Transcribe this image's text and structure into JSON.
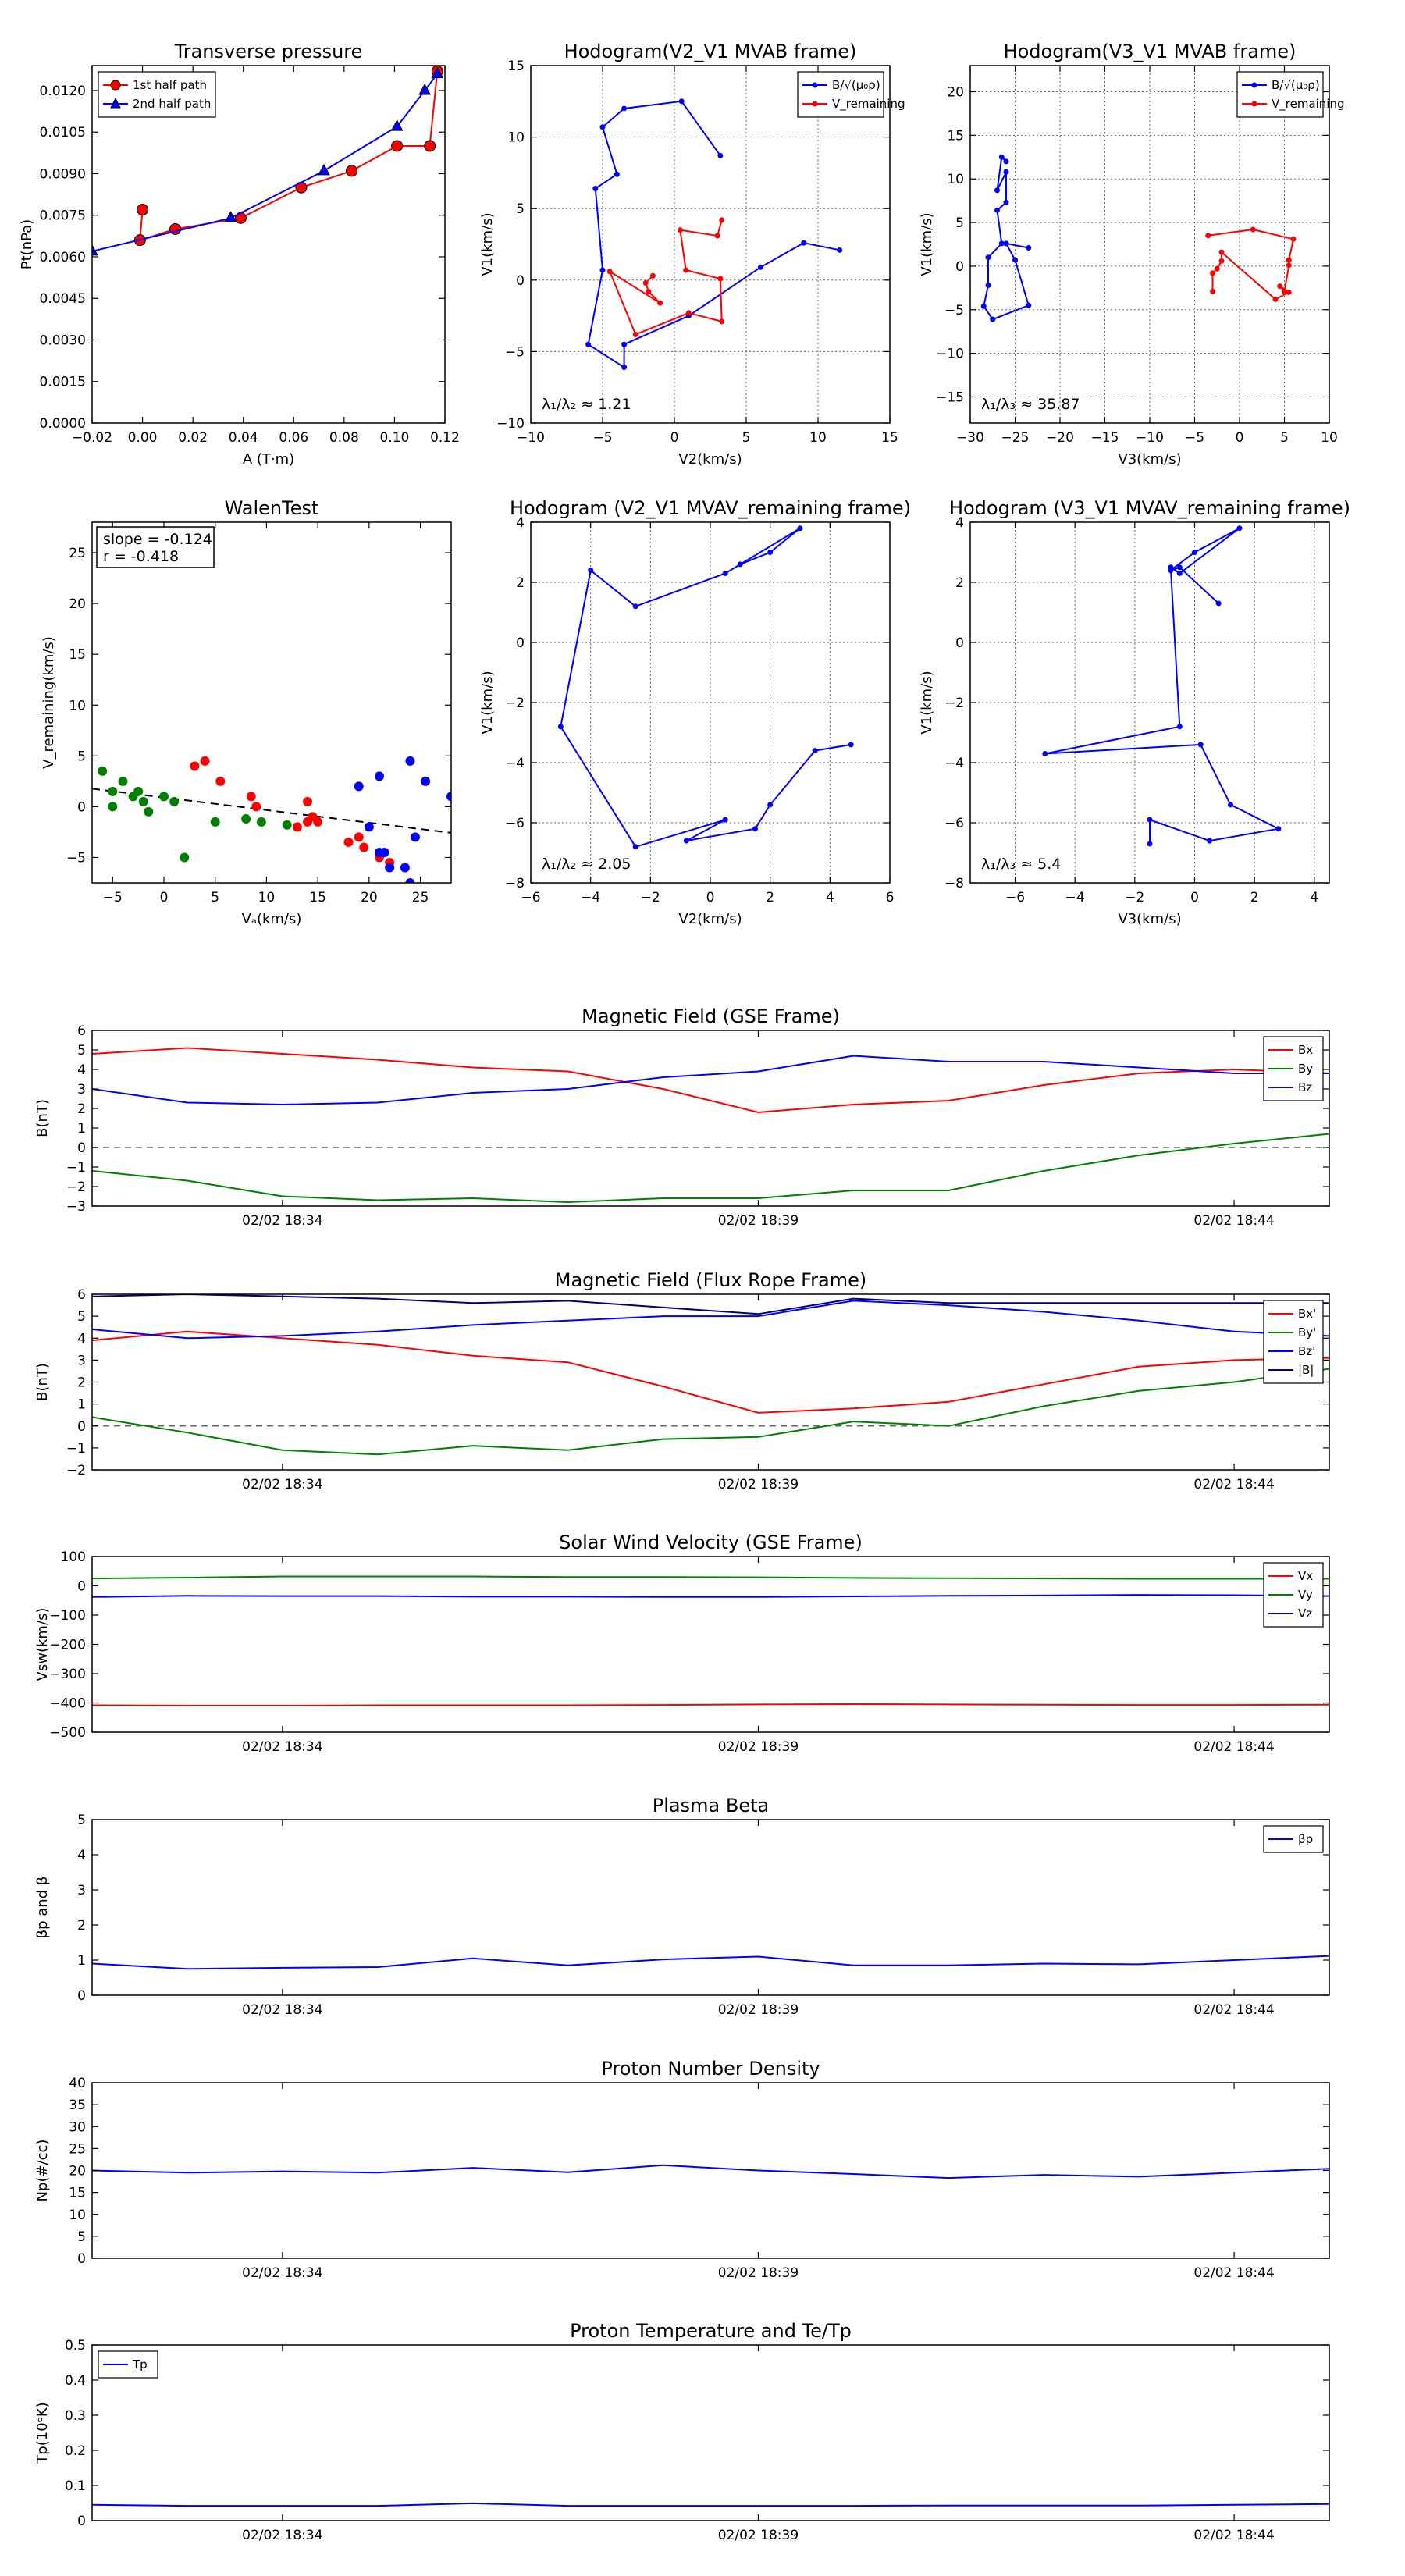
{
  "chart_data": [
    {
      "id": "pt",
      "type": "line",
      "title": "Transverse pressure",
      "xlabel": "A (T·m)",
      "ylabel": "Pt(nPa)",
      "xlim": [
        -0.02,
        0.12
      ],
      "ylim": [
        0,
        0.0129
      ],
      "xticks": [
        -0.02,
        0,
        0.02,
        0.04,
        0.06,
        0.08,
        0.1,
        0.12
      ],
      "xtick_labels": [
        "−0.02",
        "0.00",
        "0.02",
        "0.04",
        "0.06",
        "0.08",
        "0.10",
        "0.12"
      ],
      "yticks": [
        0,
        0.0015,
        0.003,
        0.0045,
        0.006,
        0.0075,
        0.009,
        0.0105,
        0.012
      ],
      "ytick_labels": [
        "0.0000",
        "0.0015",
        "0.0030",
        "0.0045",
        "0.0060",
        "0.0075",
        "0.0090",
        "0.0105",
        "0.0120"
      ],
      "legend": "top-left",
      "series": [
        {
          "name": "1st half path",
          "color": "#ff0000",
          "marker": "circle",
          "x": [
            0.0,
            -0.001,
            0.013,
            0.039,
            0.063,
            0.083,
            0.101,
            0.114,
            0.117
          ],
          "y": [
            0.0077,
            0.0066,
            0.007,
            0.0074,
            0.0085,
            0.0091,
            0.01,
            0.01,
            0.0127
          ]
        },
        {
          "name": "2nd half path",
          "color": "#0000ff",
          "marker": "triangle",
          "x": [
            -0.02,
            0.035,
            0.072,
            0.101,
            0.112,
            0.117
          ],
          "y": [
            0.0062,
            0.0074,
            0.0091,
            0.0107,
            0.012,
            0.0126
          ]
        }
      ]
    },
    {
      "id": "hodo1",
      "type": "line",
      "title": "Hodogram(V2_V1 MVAB frame)",
      "xlabel": "V2(km/s)",
      "ylabel": "V1(km/s)",
      "xlim": [
        -10,
        15
      ],
      "ylim": [
        -10,
        15
      ],
      "xticks": [
        -10,
        -5,
        0,
        5,
        10,
        15
      ],
      "yticks": [
        -10,
        -5,
        0,
        5,
        10,
        15
      ],
      "legend": "top-right",
      "annotation": "λ₁/λ₂ ≈ 1.21",
      "series": [
        {
          "name": "B/√(μ₀ρ)",
          "color": "#0000ff",
          "marker": "dot",
          "x": [
            3.2,
            0.5,
            -3.5,
            -5.0,
            -4.0,
            -5.5,
            -5.0,
            -6.0,
            -3.5,
            -3.5,
            1.0,
            6.0,
            9.0,
            11.5
          ],
          "y": [
            8.7,
            12.5,
            12.0,
            10.7,
            7.4,
            6.4,
            0.7,
            -4.5,
            -6.1,
            -4.5,
            -2.5,
            0.9,
            2.6,
            2.1
          ]
        },
        {
          "name": "V_remaining",
          "color": "#ff0000",
          "marker": "dot",
          "x": [
            3.3,
            3.0,
            0.4,
            0.8,
            3.2,
            3.3,
            1.0,
            -2.7,
            -4.5,
            -1.0,
            -1.8,
            -2.0,
            -1.5
          ],
          "y": [
            4.2,
            3.1,
            3.5,
            0.7,
            0.1,
            -2.9,
            -2.3,
            -3.8,
            0.6,
            -1.6,
            -0.8,
            -0.2,
            0.3
          ]
        }
      ]
    },
    {
      "id": "hodo2",
      "type": "line",
      "title": "Hodogram(V3_V1 MVAB frame)",
      "xlabel": "V3(km/s)",
      "ylabel": "V1(km/s)",
      "xlim": [
        -30,
        10
      ],
      "ylim": [
        -18,
        23
      ],
      "xticks": [
        -30,
        -25,
        -20,
        -15,
        -10,
        -5,
        0,
        5,
        10
      ],
      "yticks": [
        -15,
        -10,
        -5,
        0,
        5,
        10,
        15,
        20
      ],
      "legend": "top-right",
      "annotation": "λ₁/λ₃ ≈ 35.87",
      "series": [
        {
          "name": "B/√(μ₀ρ)",
          "color": "#0000ff",
          "marker": "dot",
          "x": [
            -26.0,
            -26.5,
            -27.0,
            -26.0,
            -26.0,
            -27.0,
            -26.5,
            -28.0,
            -28.0,
            -28.5,
            -27.5,
            -23.5,
            -25.0,
            -26.0,
            -23.5
          ],
          "y": [
            12.0,
            12.5,
            8.7,
            10.8,
            7.3,
            6.4,
            2.6,
            1.0,
            -2.2,
            -4.6,
            -6.1,
            -4.5,
            0.7,
            2.6,
            2.1
          ]
        },
        {
          "name": "V_remaining",
          "color": "#ff0000",
          "marker": "dot",
          "x": [
            -3.5,
            1.5,
            6.0,
            5.5,
            5.5,
            5.0,
            4.5,
            5.5,
            4.0,
            -2.0,
            -2.0,
            -2.5,
            -3.0,
            -3.0
          ],
          "y": [
            3.5,
            4.2,
            3.1,
            0.7,
            0.1,
            -2.9,
            -2.3,
            -3.0,
            -3.8,
            1.6,
            0.6,
            -0.3,
            -0.8,
            -2.9
          ]
        }
      ]
    },
    {
      "id": "walen",
      "type": "scatter",
      "title": "WalenTest",
      "xlabel": "Vₐ(km/s)",
      "ylabel": "V_remaining(km/s)",
      "xlim": [
        -7,
        28
      ],
      "ylim": [
        -7.5,
        28
      ],
      "xticks": [
        -5,
        0,
        5,
        10,
        15,
        20,
        25
      ],
      "yticks": [
        -5,
        0,
        5,
        10,
        15,
        20,
        25
      ],
      "annotation": [
        "slope = -0.124",
        "r = -0.418"
      ],
      "fit_line": {
        "slope": -0.124,
        "intercept": 0.9,
        "color": "#000000",
        "style": "dashed"
      },
      "series": [
        {
          "name": "",
          "color": "#008000",
          "x": [
            -6.0,
            -5.0,
            -5.0,
            -4.0,
            -3.0,
            -2.5,
            -2.0,
            -1.5,
            0.0,
            1.0,
            2.0,
            5.0,
            8.0,
            9.5,
            12.0
          ],
          "y": [
            3.5,
            1.5,
            0.0,
            2.5,
            1.0,
            1.5,
            0.5,
            -0.5,
            1.0,
            0.5,
            -5.0,
            -1.5,
            -1.2,
            -1.5,
            -1.8
          ]
        },
        {
          "name": "",
          "color": "#ff0000",
          "x": [
            3.0,
            4.0,
            5.5,
            8.5,
            9.0,
            13.0,
            14.0,
            14.5,
            15.0,
            14.0,
            18.0,
            19.0,
            19.5,
            21.0,
            22.0
          ],
          "y": [
            4.0,
            4.5,
            2.5,
            1.0,
            0.0,
            -2.0,
            0.5,
            -1.0,
            -1.5,
            -1.5,
            -3.5,
            -3.0,
            -4.0,
            -5.0,
            -5.5
          ]
        },
        {
          "name": "",
          "color": "#0000ff",
          "x": [
            19.0,
            20.0,
            21.0,
            21.0,
            21.5,
            22.0,
            23.5,
            24.0,
            24.5,
            25.5,
            28.0,
            24.0
          ],
          "y": [
            2.0,
            -2.0,
            3.0,
            -4.5,
            -4.5,
            -6.0,
            -6.0,
            4.5,
            -3.0,
            2.5,
            1.0,
            -7.5
          ]
        }
      ]
    },
    {
      "id": "hodo3",
      "type": "line",
      "title": "Hodogram (V2_V1 MVAV_remaining frame)",
      "xlabel": "V2(km/s)",
      "ylabel": "V1(km/s)",
      "xlim": [
        -6,
        6
      ],
      "ylim": [
        -8,
        4
      ],
      "xticks": [
        -6,
        -4,
        -2,
        0,
        2,
        4,
        6
      ],
      "yticks": [
        -8,
        -6,
        -4,
        -2,
        0,
        2,
        4
      ],
      "annotation": "λ₁/λ₂ ≈ 2.05",
      "series": [
        {
          "name": "",
          "color": "#0000ff",
          "marker": "dot",
          "x": [
            1.0,
            2.0,
            3.0,
            0.5,
            -2.5,
            -4.0,
            -5.0,
            -2.5,
            0.5,
            -0.8,
            1.5,
            2.0,
            3.5,
            4.7
          ],
          "y": [
            2.6,
            3.0,
            3.8,
            2.3,
            1.2,
            2.4,
            -2.8,
            -6.8,
            -5.9,
            -6.6,
            -6.2,
            -5.4,
            -3.6,
            -3.4
          ]
        }
      ]
    },
    {
      "id": "hodo4",
      "type": "line",
      "title": "Hodogram (V3_V1 MVAV_remaining frame)",
      "xlabel": "V3(km/s)",
      "ylabel": "V1(km/s)",
      "xlim": [
        -7.5,
        4.5
      ],
      "ylim": [
        -8,
        4
      ],
      "xticks": [
        -6,
        -4,
        -2,
        0,
        2,
        4
      ],
      "yticks": [
        -8,
        -6,
        -4,
        -2,
        0,
        2,
        4
      ],
      "annotation": "λ₁/λ₃ ≈ 5.4",
      "series": [
        {
          "name": "",
          "color": "#0000ff",
          "marker": "dot",
          "x": [
            0.8,
            -0.5,
            -0.8,
            0.0,
            1.5,
            -0.5,
            -0.8,
            -0.5,
            -5.0,
            0.2,
            1.2,
            2.8,
            0.5,
            -1.5,
            -1.5
          ],
          "y": [
            1.3,
            2.5,
            2.4,
            3.0,
            3.8,
            2.3,
            2.5,
            -2.8,
            -3.7,
            -3.4,
            -5.4,
            -6.2,
            -6.6,
            -5.9,
            -6.7
          ]
        }
      ]
    },
    {
      "id": "mag_gse",
      "type": "line",
      "title": "Magnetic Field (GSE Frame)",
      "ylabel": "B(nT)",
      "xlim": [
        0,
        13
      ],
      "ylim": [
        -3,
        6
      ],
      "xticks": [
        2,
        7,
        12
      ],
      "xtick_labels": [
        "02/02 18:34",
        "02/02 18:39",
        "02/02 18:44"
      ],
      "yticks": [
        -3,
        -2,
        -1,
        0,
        1,
        2,
        3,
        4,
        5,
        6
      ],
      "zero_line": true,
      "legend": "top-right",
      "series": [
        {
          "name": "Bx",
          "color": "#ff0000",
          "y": [
            4.8,
            5.1,
            4.8,
            4.5,
            4.1,
            3.9,
            3.0,
            1.8,
            2.2,
            2.4,
            3.2,
            3.8,
            4.0,
            3.8
          ]
        },
        {
          "name": "By",
          "color": "#008000",
          "y": [
            -1.2,
            -1.7,
            -2.5,
            -2.7,
            -2.6,
            -2.8,
            -2.6,
            -2.6,
            -2.2,
            -2.2,
            -1.2,
            -0.4,
            0.2,
            0.7
          ]
        },
        {
          "name": "Bz",
          "color": "#0000ff",
          "y": [
            3.0,
            2.3,
            2.2,
            2.3,
            2.8,
            3.0,
            3.6,
            3.9,
            4.7,
            4.4,
            4.4,
            4.1,
            3.8,
            3.8
          ]
        }
      ]
    },
    {
      "id": "mag_fr",
      "type": "line",
      "title": "Magnetic Field (Flux Rope Frame)",
      "ylabel": "B(nT)",
      "xlim": [
        0,
        13
      ],
      "ylim": [
        -2,
        6
      ],
      "xticks": [
        2,
        7,
        12
      ],
      "xtick_labels": [
        "02/02 18:34",
        "02/02 18:39",
        "02/02 18:44"
      ],
      "yticks": [
        -2,
        -1,
        0,
        1,
        2,
        3,
        4,
        5,
        6
      ],
      "zero_line": true,
      "legend": "top-right",
      "series": [
        {
          "name": "Bx'",
          "color": "#ff0000",
          "y": [
            3.9,
            4.3,
            4.0,
            3.7,
            3.2,
            2.9,
            1.8,
            0.6,
            0.8,
            1.1,
            1.9,
            2.7,
            3.0,
            3.1
          ]
        },
        {
          "name": "By'",
          "color": "#008000",
          "y": [
            0.4,
            -0.3,
            -1.1,
            -1.3,
            -0.9,
            -1.1,
            -0.6,
            -0.5,
            0.2,
            0.0,
            0.9,
            1.6,
            2.0,
            2.6
          ]
        },
        {
          "name": "Bz'",
          "color": "#0000ff",
          "y": [
            4.4,
            4.0,
            4.1,
            4.3,
            4.6,
            4.8,
            5.0,
            5.0,
            5.7,
            5.5,
            5.2,
            4.8,
            4.3,
            4.1
          ]
        },
        {
          "name": "|B|",
          "color": "#000080",
          "y": [
            5.9,
            6.0,
            5.9,
            5.8,
            5.6,
            5.7,
            5.4,
            5.1,
            5.8,
            5.6,
            5.6,
            5.6,
            5.6,
            5.6
          ]
        }
      ]
    },
    {
      "id": "vsw",
      "type": "line",
      "title": "Solar Wind Velocity (GSE Frame)",
      "ylabel": "Vsw(km/s)",
      "xlim": [
        0,
        13
      ],
      "ylim": [
        -500,
        100
      ],
      "xticks": [
        2,
        7,
        12
      ],
      "xtick_labels": [
        "02/02 18:34",
        "02/02 18:39",
        "02/02 18:44"
      ],
      "yticks": [
        -500,
        -400,
        -300,
        -200,
        -100,
        0,
        100
      ],
      "ytick_labels": [
        "−500",
        "−400",
        "−300",
        "−200",
        "−100",
        "0",
        "100"
      ],
      "legend": "top-right",
      "series": [
        {
          "name": "Vx",
          "color": "#ff0000",
          "y": [
            -408,
            -409,
            -409,
            -408,
            -408,
            -408,
            -407,
            -405,
            -404,
            -405,
            -406,
            -407,
            -407,
            -406
          ]
        },
        {
          "name": "Vy",
          "color": "#008000",
          "y": [
            25,
            28,
            32,
            32,
            32,
            30,
            30,
            29,
            27,
            26,
            25,
            24,
            24,
            24
          ]
        },
        {
          "name": "Vz",
          "color": "#0000ff",
          "y": [
            -38,
            -34,
            -35,
            -35,
            -37,
            -37,
            -38,
            -38,
            -36,
            -34,
            -33,
            -31,
            -32,
            -35
          ]
        }
      ]
    },
    {
      "id": "beta",
      "type": "line",
      "title": "Plasma Beta",
      "ylabel": "βp and β",
      "xlim": [
        0,
        13
      ],
      "ylim": [
        0,
        5
      ],
      "xticks": [
        2,
        7,
        12
      ],
      "xtick_labels": [
        "02/02 18:34",
        "02/02 18:39",
        "02/02 18:44"
      ],
      "yticks": [
        0,
        1,
        2,
        3,
        4,
        5
      ],
      "legend": "top-right",
      "series": [
        {
          "name": "βp",
          "color": "#0000ff",
          "y": [
            0.9,
            0.75,
            0.78,
            0.8,
            1.05,
            0.85,
            1.02,
            1.1,
            0.85,
            0.85,
            0.9,
            0.88,
            1.0,
            1.12
          ]
        }
      ]
    },
    {
      "id": "np",
      "type": "line",
      "title": "Proton Number Density",
      "ylabel": "Np(#/cc)",
      "xlim": [
        0,
        13
      ],
      "ylim": [
        0,
        40
      ],
      "xticks": [
        2,
        7,
        12
      ],
      "xtick_labels": [
        "02/02 18:34",
        "02/02 18:39",
        "02/02 18:44"
      ],
      "yticks": [
        0,
        5,
        10,
        15,
        20,
        25,
        30,
        35,
        40
      ],
      "series": [
        {
          "name": "",
          "color": "#0000ff",
          "y": [
            20.0,
            19.5,
            19.8,
            19.5,
            20.6,
            19.6,
            21.2,
            20.0,
            19.2,
            18.3,
            19.0,
            18.6,
            19.5,
            20.4
          ]
        }
      ]
    },
    {
      "id": "tp",
      "type": "line",
      "title": "Proton Temperature and Te/Tp",
      "ylabel": "Tp(10⁶K)",
      "xlim": [
        0,
        13
      ],
      "ylim": [
        0,
        0.5
      ],
      "xticks": [
        2,
        7,
        12
      ],
      "xtick_labels": [
        "02/02 18:34",
        "02/02 18:39",
        "02/02 18:44"
      ],
      "yticks": [
        0,
        0.1,
        0.2,
        0.3,
        0.4,
        0.5
      ],
      "legend": "top-left",
      "series": [
        {
          "name": "Tp",
          "color": "#0000ff",
          "y": [
            0.045,
            0.042,
            0.042,
            0.042,
            0.049,
            0.042,
            0.042,
            0.042,
            0.042,
            0.043,
            0.043,
            0.043,
            0.045,
            0.047
          ]
        }
      ]
    }
  ]
}
